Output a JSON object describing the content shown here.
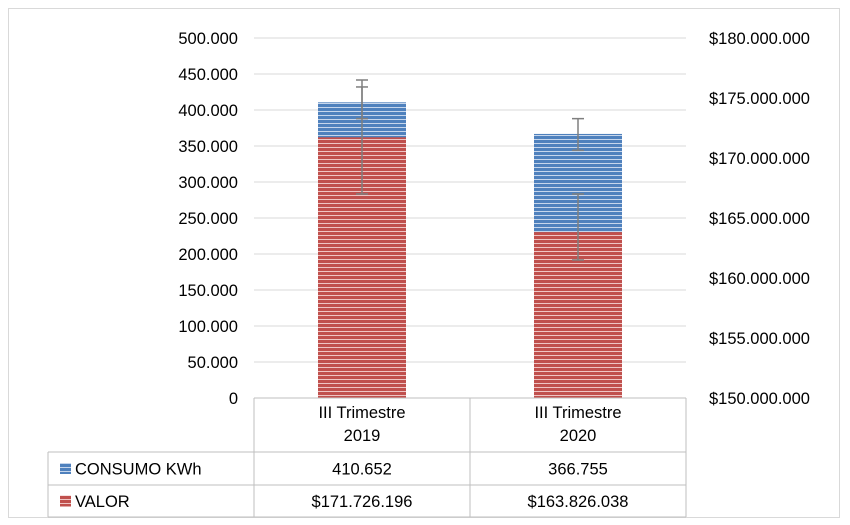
{
  "chart_data": {
    "type": "bar",
    "stacked": true,
    "categories": [
      {
        "line1": "III Trimestre",
        "line2": "2019"
      },
      {
        "line1": "III Trimestre",
        "line2": "2020"
      }
    ],
    "series": [
      {
        "name": "CONSUMO  KWh",
        "axis": "left",
        "color": "#4f81bd",
        "values": [
          410652,
          366755
        ],
        "labels": [
          "410.652",
          "366.755"
        ],
        "error_bars": [
          [
            388000,
            432000
          ],
          [
            344000,
            388000
          ]
        ]
      },
      {
        "name": "VALOR",
        "axis": "right",
        "color": "#c0504d",
        "values": [
          171726196,
          163826038
        ],
        "labels": [
          "$171.726.196",
          "$163.826.038"
        ],
        "error_bars": [
          [
            167000000,
            176500000
          ],
          [
            161500000,
            167000000
          ]
        ]
      }
    ],
    "y_left": {
      "min": 0,
      "max": 500000,
      "ticks": [
        "0",
        "50.000",
        "100.000",
        "150.000",
        "200.000",
        "250.000",
        "300.000",
        "350.000",
        "400.000",
        "450.000",
        "500.000"
      ]
    },
    "y_right": {
      "min": 150000000,
      "max": 180000000,
      "ticks": [
        "$150.000.000",
        "$155.000.000",
        "$160.000.000",
        "$165.000.000",
        "$170.000.000",
        "$175.000.000",
        "$180.000.000"
      ]
    },
    "grid": true,
    "legend": "data-table"
  }
}
